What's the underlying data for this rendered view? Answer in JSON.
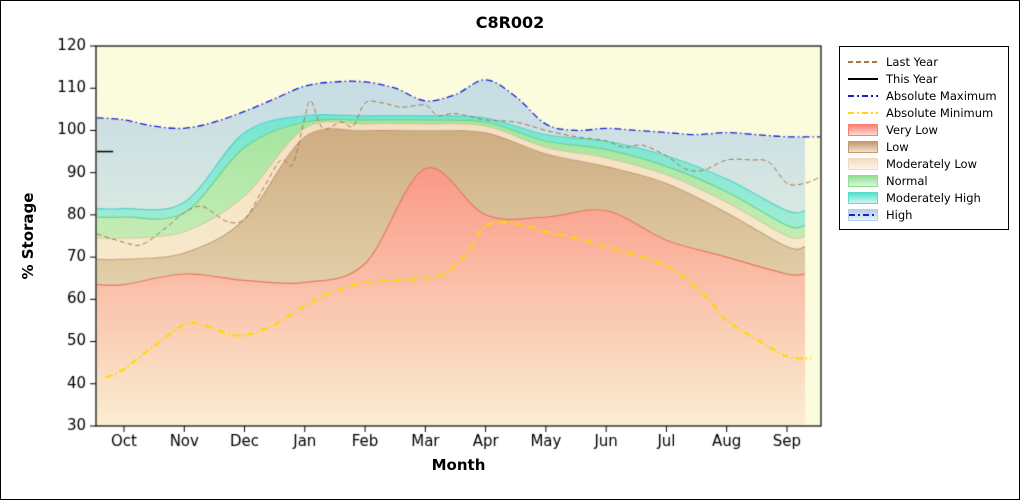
{
  "chart_data": {
    "type": "area",
    "title": "C8R002",
    "xlabel": "Month",
    "ylabel": "% Storage",
    "ylim": [
      30,
      120
    ],
    "y_ticks": [
      30,
      40,
      50,
      60,
      70,
      80,
      90,
      100,
      110,
      120
    ],
    "categories": [
      "Oct",
      "Nov",
      "Dec",
      "Jan",
      "Feb",
      "Mar",
      "Apr",
      "May",
      "Jun",
      "Jul",
      "Aug",
      "Sep"
    ],
    "plot_background": "#FBFBDD",
    "bands": [
      {
        "name": "Very Low",
        "fill": "#FA8072",
        "line": "#F2705A",
        "top": [
          63.5,
          66,
          64.5,
          64,
          68.5,
          91,
          80,
          79.5,
          81,
          74,
          70,
          66
        ]
      },
      {
        "name": "Low",
        "fill": "#C49A6C",
        "line": "#B8916A",
        "top": [
          69.5,
          71,
          79,
          98.5,
          100,
          100,
          99.5,
          94.5,
          91.5,
          87.5,
          80.5,
          72.5
        ]
      },
      {
        "name": "Moderately Low",
        "fill": "#F5DBBE",
        "line": "#E9C9A5",
        "top": [
          74.5,
          76,
          84.5,
          100.5,
          101.5,
          101.5,
          101,
          96,
          93.5,
          89.5,
          83,
          75
        ]
      },
      {
        "name": "Normal",
        "fill": "#8FDF8F",
        "line": "#6FCF6F",
        "top": [
          79.5,
          80.5,
          96,
          102,
          102.5,
          102.5,
          102,
          97.5,
          95.5,
          91.5,
          85.5,
          77.5
        ]
      },
      {
        "name": "Moderately High",
        "fill": "#55E0CE",
        "line": "#3BD4C2",
        "top": [
          81.5,
          83,
          99.5,
          103.5,
          103.5,
          103.5,
          103,
          99,
          97.5,
          94,
          88.5,
          81
        ]
      },
      {
        "name": "High",
        "fill": "#AFD0E8",
        "line": null,
        "top_ref": "Absolute Maximum"
      }
    ],
    "lines": [
      {
        "name": "Absolute Minimum",
        "color": "#FFD900",
        "style": "dashdot",
        "width": 2.2,
        "x": [
          -0.3,
          0,
          0.5,
          1,
          1.3,
          1.7,
          2,
          2.5,
          3,
          3.5,
          4,
          4.5,
          5,
          5.3,
          5.7,
          6,
          6.5,
          7,
          7.5,
          8,
          8.5,
          9,
          9.3,
          9.7,
          10,
          10.5,
          11,
          11.4
        ],
        "v": [
          41.5,
          43.5,
          49,
          54,
          54,
          52,
          51.5,
          54,
          58.5,
          62,
          64,
          64.5,
          65,
          66,
          71,
          77.5,
          78,
          76,
          74.5,
          72.5,
          70.5,
          68,
          65,
          60,
          55,
          50.5,
          46.5,
          46
        ]
      },
      {
        "name": "Last Year",
        "color": "#A87848",
        "style": "dash",
        "width": 1,
        "x": [
          -0.45,
          0,
          0.3,
          0.7,
          1,
          1.3,
          1.7,
          2,
          2.3,
          2.6,
          2.8,
          3,
          3.1,
          3.3,
          3.6,
          3.8,
          4,
          4.3,
          4.6,
          5,
          5.2,
          5.5,
          6,
          6.5,
          7,
          7.5,
          8,
          8.3,
          8.6,
          9,
          9.3,
          9.6,
          10,
          10.4,
          10.7,
          11,
          11.3,
          11.55
        ],
        "v": [
          75.5,
          73.5,
          73,
          77,
          80.5,
          82,
          78.5,
          79,
          86,
          93,
          92,
          103,
          107,
          100.5,
          102,
          101,
          106.5,
          106.5,
          105.5,
          106,
          103.5,
          104,
          102.5,
          102,
          100,
          98.5,
          97.5,
          96,
          96.5,
          94,
          91,
          90.5,
          93,
          93,
          92.5,
          87.5,
          87.5,
          89
        ]
      },
      {
        "name": "Absolute Maximum",
        "color": "#1F1FCF",
        "style": "dashdot",
        "width": 1.3,
        "x": [
          -0.45,
          0,
          0.5,
          1,
          1.5,
          2,
          2.5,
          3,
          3.5,
          4,
          4.5,
          5,
          5.5,
          6,
          6.5,
          7,
          7.5,
          8,
          8.5,
          9,
          9.5,
          10,
          10.5,
          11,
          11.55
        ],
        "v": [
          103,
          102.5,
          101,
          100.5,
          102,
          104.5,
          107.5,
          110.5,
          111.5,
          111.5,
          110,
          107,
          108.5,
          112,
          108,
          101.5,
          100,
          100.5,
          100,
          99.5,
          99,
          99.5,
          99,
          98.5,
          98.5
        ]
      },
      {
        "name": "This Year",
        "color": "#000000",
        "style": "solid",
        "width": 1.5,
        "x": [
          -0.45,
          -0.18
        ],
        "v": [
          95,
          95
        ]
      }
    ]
  },
  "legend": {
    "items": [
      {
        "label": "Last Year",
        "slug": "last-year",
        "sample": "line-dash",
        "color": "#A87848"
      },
      {
        "label": "This Year",
        "slug": "this-year",
        "sample": "line-solid",
        "color": "#000000"
      },
      {
        "label": "Absolute Maximum",
        "slug": "absolute-maximum",
        "sample": "line-dashdot",
        "color": "#1F1FCF"
      },
      {
        "label": "Absolute Minimum",
        "slug": "absolute-minimum",
        "sample": "line-dashdot",
        "color": "#FFD900"
      },
      {
        "label": "Very Low",
        "slug": "very-low",
        "sample": "patch",
        "color": "#FA8072"
      },
      {
        "label": "Low",
        "slug": "low",
        "sample": "patch",
        "color": "#C49A6C"
      },
      {
        "label": "Moderately Low",
        "slug": "moderately-low",
        "sample": "patch",
        "color": "#F5DBBE"
      },
      {
        "label": "Normal",
        "slug": "normal",
        "sample": "patch",
        "color": "#8FDF8F"
      },
      {
        "label": "Moderately High",
        "slug": "moderately-high",
        "sample": "patch",
        "color": "#55E0CE"
      },
      {
        "label": "High",
        "slug": "high",
        "sample": "patch-line",
        "color": "#1F1FCF",
        "patch": "#AFD0E8"
      }
    ]
  }
}
